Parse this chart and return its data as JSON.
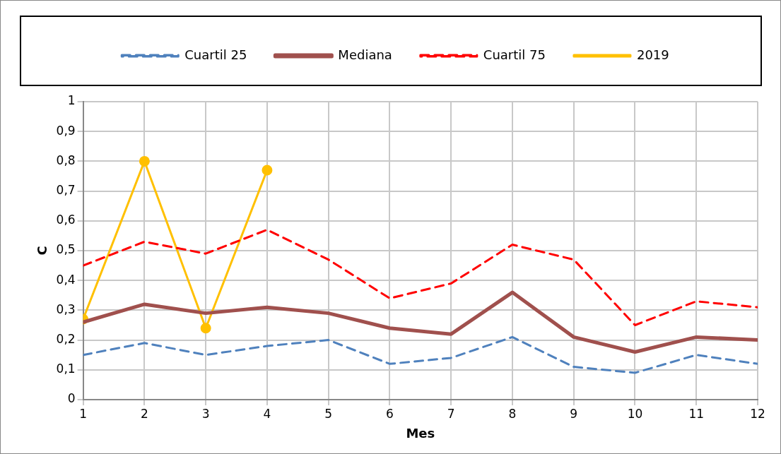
{
  "chart_data": {
    "type": "line",
    "xlabel": "Mes",
    "ylabel": "C",
    "x": [
      1,
      2,
      3,
      4,
      5,
      6,
      7,
      8,
      9,
      10,
      11,
      12
    ],
    "xlim": [
      1,
      12
    ],
    "xticks": [
      1,
      2,
      3,
      4,
      5,
      6,
      7,
      8,
      9,
      10,
      11,
      12
    ],
    "ylim": [
      0,
      1
    ],
    "yticks": [
      0,
      {
        "value": 0.1,
        "label": "0,1"
      },
      {
        "value": 0.2,
        "label": "0,2"
      },
      {
        "value": 0.3,
        "label": "0,3"
      },
      {
        "value": 0.4,
        "label": "0,4"
      },
      {
        "value": 0.5,
        "label": "0,5"
      },
      {
        "value": 0.6,
        "label": "0,6"
      },
      {
        "value": 0.7,
        "label": "0,7"
      },
      {
        "value": 0.8,
        "label": "0,8"
      },
      {
        "value": 0.9,
        "label": "0,9"
      },
      1
    ],
    "grid": true,
    "legend": "top",
    "series": [
      {
        "name": "Cuartil 25",
        "color": "#4f81bd",
        "line_style": "dashed",
        "marker": "none",
        "values": [
          0.15,
          0.19,
          0.15,
          0.18,
          0.2,
          0.12,
          0.14,
          0.21,
          0.11,
          0.09,
          0.15,
          0.12
        ]
      },
      {
        "name": "Mediana",
        "color": "#a0504d",
        "line_style": "solid",
        "marker": "none",
        "values": [
          0.26,
          0.32,
          0.29,
          0.31,
          0.29,
          0.24,
          0.22,
          0.36,
          0.21,
          0.16,
          0.21,
          0.2
        ]
      },
      {
        "name": "Cuartil 75",
        "color": "#ff0000",
        "line_style": "dashed",
        "marker": "none",
        "values": [
          0.45,
          0.53,
          0.49,
          0.57,
          0.47,
          0.34,
          0.39,
          0.52,
          0.47,
          0.25,
          0.33,
          0.31
        ]
      },
      {
        "name": "2019",
        "color": "#ffc000",
        "line_style": "solid",
        "marker": "circle",
        "values": [
          0.27,
          0.8,
          0.24,
          0.77,
          null,
          null,
          null,
          null,
          null,
          null,
          null,
          null
        ]
      }
    ]
  }
}
